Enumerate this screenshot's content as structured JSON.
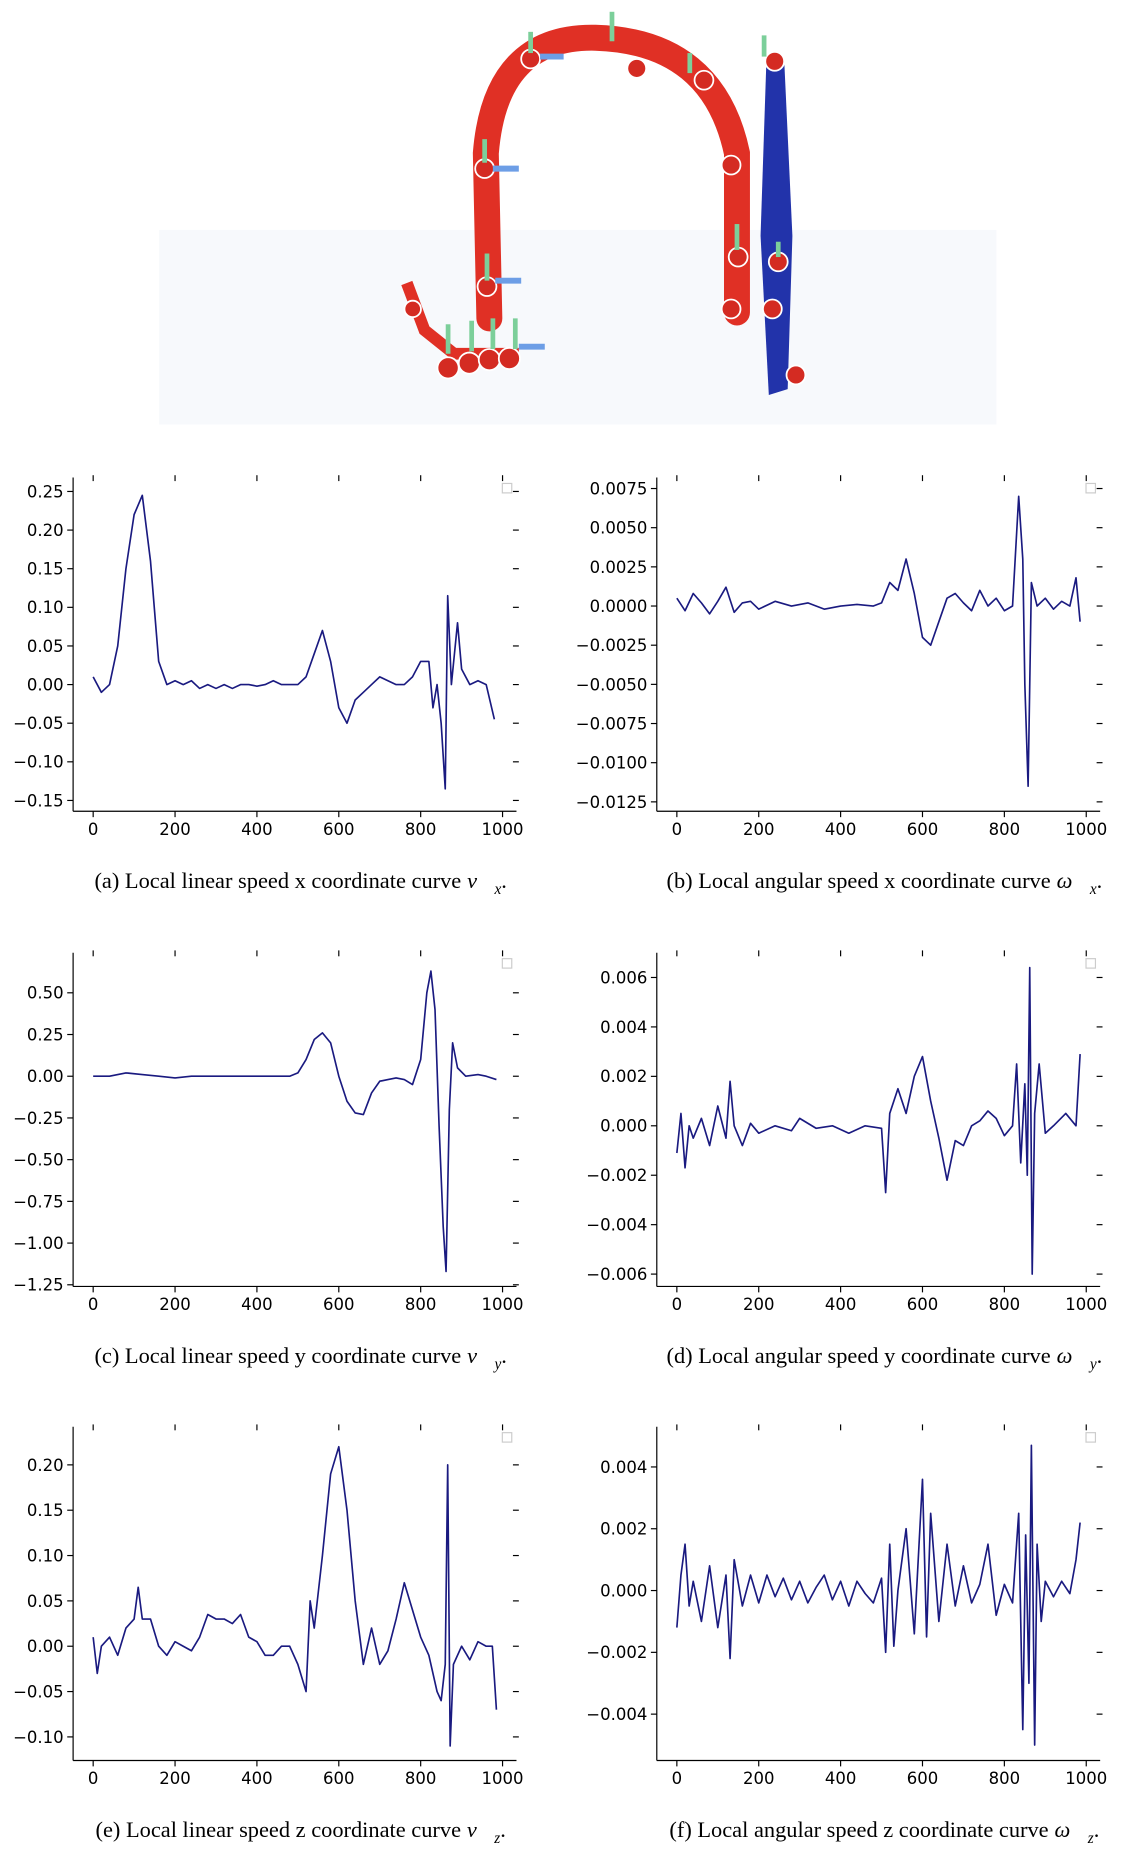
{
  "chart_data": [
    {
      "type": "line",
      "caption": "(a) Local linear speed x coordinate curve",
      "symbol": "v⃗",
      "subscript": "x",
      "caption_end": ".",
      "color": "#1a1a80",
      "xlim": [
        -49,
        1034
      ],
      "xticks": [
        0,
        200,
        400,
        600,
        800,
        1000
      ],
      "ylim": [
        -0.164,
        0.268
      ],
      "yticks": [
        {
          "value": -0.15,
          "label": "−0.15"
        },
        {
          "value": -0.1,
          "label": "−0.10"
        },
        {
          "value": -0.05,
          "label": "−0.05"
        },
        {
          "value": 0,
          "label": "0.00"
        },
        {
          "value": 0.05,
          "label": "0.05"
        },
        {
          "value": 0.1,
          "label": "0.10"
        },
        {
          "value": 0.15,
          "label": "0.15"
        },
        {
          "value": 0.2,
          "label": "0.20"
        },
        {
          "value": 0.25,
          "label": "0.25"
        }
      ],
      "x": [
        0,
        20,
        40,
        60,
        80,
        100,
        120,
        140,
        160,
        180,
        200,
        220,
        240,
        260,
        280,
        300,
        320,
        340,
        360,
        380,
        400,
        420,
        440,
        460,
        480,
        500,
        520,
        540,
        560,
        580,
        600,
        620,
        640,
        660,
        680,
        700,
        720,
        740,
        760,
        780,
        800,
        820,
        830,
        840,
        850,
        860,
        866,
        875,
        890,
        900,
        920,
        940,
        960,
        980
      ],
      "values": [
        0.01,
        -0.01,
        0.0,
        0.05,
        0.15,
        0.22,
        0.245,
        0.16,
        0.03,
        0.0,
        0.005,
        0.0,
        0.005,
        -0.005,
        0.0,
        -0.005,
        0.0,
        -0.005,
        0.0,
        0.0,
        -0.002,
        0.0,
        0.005,
        0.0,
        0.0,
        0.0,
        0.01,
        0.04,
        0.07,
        0.03,
        -0.03,
        -0.05,
        -0.02,
        -0.01,
        0.0,
        0.01,
        0.005,
        0.0,
        0.0,
        0.01,
        0.03,
        0.03,
        -0.03,
        0.0,
        -0.05,
        -0.135,
        0.115,
        0.0,
        0.08,
        0.02,
        0.0,
        0.005,
        0.0,
        -0.045
      ]
    },
    {
      "type": "line",
      "caption": "(b) Local angular speed x coordinate curve",
      "symbol": "ω⃗",
      "subscript": "x",
      "caption_end": ".",
      "color": "#1a1a80",
      "xlim": [
        -49,
        1034
      ],
      "xticks": [
        0,
        200,
        400,
        600,
        800,
        1000
      ],
      "ylim": [
        -0.0131,
        0.0082
      ],
      "yticks": [
        {
          "value": -0.0125,
          "label": "−0.0125"
        },
        {
          "value": -0.01,
          "label": "−0.0100"
        },
        {
          "value": -0.0075,
          "label": "−0.0075"
        },
        {
          "value": -0.005,
          "label": "−0.0050"
        },
        {
          "value": -0.0025,
          "label": "−0.0025"
        },
        {
          "value": 0,
          "label": "0.0000"
        },
        {
          "value": 0.0025,
          "label": "0.0025"
        },
        {
          "value": 0.005,
          "label": "0.0050"
        },
        {
          "value": 0.0075,
          "label": "0.0075"
        }
      ],
      "x": [
        0,
        20,
        40,
        60,
        80,
        100,
        120,
        140,
        160,
        180,
        200,
        240,
        280,
        320,
        360,
        400,
        440,
        480,
        500,
        520,
        540,
        560,
        580,
        600,
        620,
        640,
        660,
        680,
        700,
        720,
        740,
        760,
        780,
        800,
        820,
        835,
        845,
        850,
        858,
        866,
        880,
        900,
        920,
        940,
        960,
        975,
        985
      ],
      "values": [
        0.0005,
        -0.0003,
        0.0008,
        0.0002,
        -0.0005,
        0.0003,
        0.0012,
        -0.0004,
        0.0002,
        0.0003,
        -0.0002,
        0.0003,
        0.0,
        0.0002,
        -0.0002,
        0.0,
        0.0001,
        0.0,
        0.0002,
        0.0015,
        0.001,
        0.003,
        0.0008,
        -0.002,
        -0.0025,
        -0.001,
        0.0005,
        0.0008,
        0.0002,
        -0.0003,
        0.001,
        0.0,
        0.0005,
        -0.0003,
        0.0,
        0.007,
        0.003,
        -0.005,
        -0.0115,
        0.0015,
        0.0,
        0.0005,
        -0.0002,
        0.0003,
        0.0,
        0.0018,
        -0.001
      ]
    },
    {
      "type": "line",
      "caption": "(c) Local linear speed y coordinate curve",
      "symbol": "v⃗",
      "subscript": "y",
      "caption_end": ".",
      "color": "#1a1a80",
      "xlim": [
        -49,
        1034
      ],
      "xticks": [
        0,
        200,
        400,
        600,
        800,
        1000
      ],
      "ylim": [
        -1.26,
        0.74
      ],
      "yticks": [
        {
          "value": -1.25,
          "label": "−1.25"
        },
        {
          "value": -1,
          "label": "−1.00"
        },
        {
          "value": -0.75,
          "label": "−0.75"
        },
        {
          "value": -0.5,
          "label": "−0.50"
        },
        {
          "value": -0.25,
          "label": "−0.25"
        },
        {
          "value": 0,
          "label": "0.00"
        },
        {
          "value": 0.25,
          "label": "0.25"
        },
        {
          "value": 0.5,
          "label": "0.50"
        }
      ],
      "x": [
        0,
        40,
        80,
        120,
        160,
        200,
        240,
        280,
        320,
        360,
        400,
        440,
        480,
        500,
        520,
        540,
        560,
        580,
        600,
        620,
        640,
        660,
        680,
        700,
        720,
        740,
        760,
        780,
        800,
        815,
        825,
        835,
        845,
        855,
        862,
        870,
        878,
        890,
        910,
        940,
        960,
        985
      ],
      "values": [
        0.0,
        0.0,
        0.02,
        0.01,
        0.0,
        -0.01,
        0.0,
        0.0,
        0.0,
        0.0,
        0.0,
        0.0,
        0.0,
        0.02,
        0.1,
        0.22,
        0.26,
        0.2,
        0.0,
        -0.15,
        -0.22,
        -0.23,
        -0.1,
        -0.03,
        -0.02,
        -0.01,
        -0.02,
        -0.05,
        0.1,
        0.5,
        0.63,
        0.4,
        -0.3,
        -0.9,
        -1.17,
        -0.2,
        0.2,
        0.05,
        0.0,
        0.01,
        0.0,
        -0.02
      ]
    },
    {
      "type": "line",
      "caption": "(d) Local angular speed y coordinate curve",
      "symbol": "ω⃗",
      "subscript": "y",
      "caption_end": ".",
      "color": "#1a1a80",
      "xlim": [
        -49,
        1034
      ],
      "xticks": [
        0,
        200,
        400,
        600,
        800,
        1000
      ],
      "ylim": [
        -0.0065,
        0.007
      ],
      "yticks": [
        {
          "value": -0.006,
          "label": "−0.006"
        },
        {
          "value": -0.004,
          "label": "−0.004"
        },
        {
          "value": -0.002,
          "label": "−0.002"
        },
        {
          "value": 0,
          "label": "0.000"
        },
        {
          "value": 0.002,
          "label": "0.002"
        },
        {
          "value": 0.004,
          "label": "0.004"
        },
        {
          "value": 0.006,
          "label": "0.006"
        }
      ],
      "x": [
        0,
        10,
        20,
        30,
        40,
        60,
        80,
        100,
        120,
        130,
        140,
        160,
        180,
        200,
        240,
        280,
        300,
        340,
        380,
        420,
        460,
        500,
        510,
        520,
        540,
        560,
        580,
        600,
        620,
        640,
        660,
        680,
        700,
        720,
        740,
        760,
        780,
        800,
        820,
        830,
        840,
        850,
        856,
        862,
        868,
        874,
        885,
        900,
        920,
        950,
        975,
        985
      ],
      "values": [
        -0.0011,
        0.0005,
        -0.0017,
        0.0,
        -0.0005,
        0.0003,
        -0.0008,
        0.0008,
        -0.0005,
        0.0018,
        0.0,
        -0.0008,
        0.0001,
        -0.0003,
        0.0,
        -0.0002,
        0.0003,
        -0.0001,
        0.0,
        -0.0003,
        0.0,
        -0.0001,
        -0.0027,
        0.0005,
        0.0015,
        0.0005,
        0.002,
        0.0028,
        0.001,
        -0.0005,
        -0.0022,
        -0.0006,
        -0.0008,
        0.0,
        0.0002,
        0.0006,
        0.0003,
        -0.0004,
        0.0,
        0.0025,
        -0.0015,
        0.0017,
        -0.002,
        0.0064,
        -0.006,
        0.0005,
        0.0025,
        -0.0003,
        0.0,
        0.0005,
        0.0,
        0.0029
      ]
    },
    {
      "type": "line",
      "caption": "(e) Local linear speed z coordinate curve",
      "symbol": "v⃗",
      "subscript": "z",
      "caption_end": ".",
      "color": "#1a1a80",
      "xlim": [
        -49,
        1034
      ],
      "xticks": [
        0,
        200,
        400,
        600,
        800,
        1000
      ],
      "ylim": [
        -0.126,
        0.242
      ],
      "yticks": [
        {
          "value": -0.1,
          "label": "−0.10"
        },
        {
          "value": -0.05,
          "label": "−0.05"
        },
        {
          "value": 0,
          "label": "0.00"
        },
        {
          "value": 0.05,
          "label": "0.05"
        },
        {
          "value": 0.1,
          "label": "0.10"
        },
        {
          "value": 0.15,
          "label": "0.15"
        },
        {
          "value": 0.2,
          "label": "0.20"
        }
      ],
      "x": [
        0,
        10,
        20,
        40,
        60,
        80,
        100,
        110,
        120,
        140,
        160,
        180,
        200,
        220,
        240,
        260,
        280,
        300,
        320,
        340,
        360,
        380,
        400,
        420,
        440,
        460,
        480,
        500,
        520,
        530,
        540,
        560,
        580,
        600,
        620,
        640,
        660,
        680,
        700,
        720,
        740,
        760,
        780,
        800,
        820,
        840,
        850,
        860,
        866,
        872,
        880,
        900,
        920,
        940,
        960,
        975,
        985
      ],
      "values": [
        0.01,
        -0.03,
        0.0,
        0.01,
        -0.01,
        0.02,
        0.03,
        0.065,
        0.03,
        0.03,
        0.0,
        -0.01,
        0.005,
        0.0,
        -0.005,
        0.01,
        0.035,
        0.03,
        0.03,
        0.025,
        0.035,
        0.01,
        0.005,
        -0.01,
        -0.01,
        0.0,
        0.0,
        -0.02,
        -0.05,
        0.05,
        0.02,
        0.1,
        0.19,
        0.22,
        0.15,
        0.05,
        -0.02,
        0.02,
        -0.02,
        -0.005,
        0.03,
        0.07,
        0.04,
        0.01,
        -0.01,
        -0.05,
        -0.06,
        -0.02,
        0.2,
        -0.11,
        -0.02,
        0.0,
        -0.015,
        0.005,
        0.0,
        0.0,
        -0.07
      ]
    },
    {
      "type": "line",
      "caption": "(f) Local angular speed z coordinate curve",
      "symbol": "ω⃗",
      "subscript": "z",
      "caption_end": ".",
      "color": "#1a1a80",
      "xlim": [
        -49,
        1034
      ],
      "xticks": [
        0,
        200,
        400,
        600,
        800,
        1000
      ],
      "ylim": [
        -0.0055,
        0.0053
      ],
      "yticks": [
        {
          "value": -0.004,
          "label": "−0.004"
        },
        {
          "value": -0.002,
          "label": "−0.002"
        },
        {
          "value": 0,
          "label": "0.000"
        },
        {
          "value": 0.002,
          "label": "0.002"
        },
        {
          "value": 0.004,
          "label": "0.004"
        }
      ],
      "x": [
        0,
        10,
        20,
        30,
        40,
        60,
        80,
        100,
        120,
        130,
        140,
        160,
        180,
        200,
        220,
        240,
        260,
        280,
        300,
        320,
        340,
        360,
        380,
        400,
        420,
        440,
        460,
        480,
        500,
        510,
        520,
        530,
        540,
        560,
        580,
        600,
        610,
        620,
        640,
        660,
        680,
        700,
        720,
        740,
        760,
        780,
        800,
        820,
        835,
        845,
        852,
        860,
        866,
        874,
        880,
        890,
        900,
        920,
        940,
        960,
        975,
        985
      ],
      "values": [
        -0.0012,
        0.0005,
        0.0015,
        -0.0005,
        0.0003,
        -0.001,
        0.0008,
        -0.0012,
        0.0005,
        -0.0022,
        0.001,
        -0.0005,
        0.0005,
        -0.0004,
        0.0005,
        -0.0002,
        0.0004,
        -0.0003,
        0.0003,
        -0.0004,
        0.0001,
        0.0005,
        -0.0003,
        0.0003,
        -0.0005,
        0.0003,
        -0.0001,
        -0.0004,
        0.0004,
        -0.002,
        0.0015,
        -0.0018,
        0.0,
        0.002,
        -0.0014,
        0.0036,
        -0.0015,
        0.0025,
        -0.001,
        0.0015,
        -0.0005,
        0.0008,
        -0.0004,
        0.0002,
        0.0015,
        -0.0008,
        0.0002,
        -0.0004,
        0.0025,
        -0.0045,
        0.0018,
        -0.003,
        0.0047,
        -0.005,
        0.0015,
        -0.001,
        0.0003,
        -0.0002,
        0.0003,
        -0.0001,
        0.001,
        0.0022
      ]
    }
  ]
}
